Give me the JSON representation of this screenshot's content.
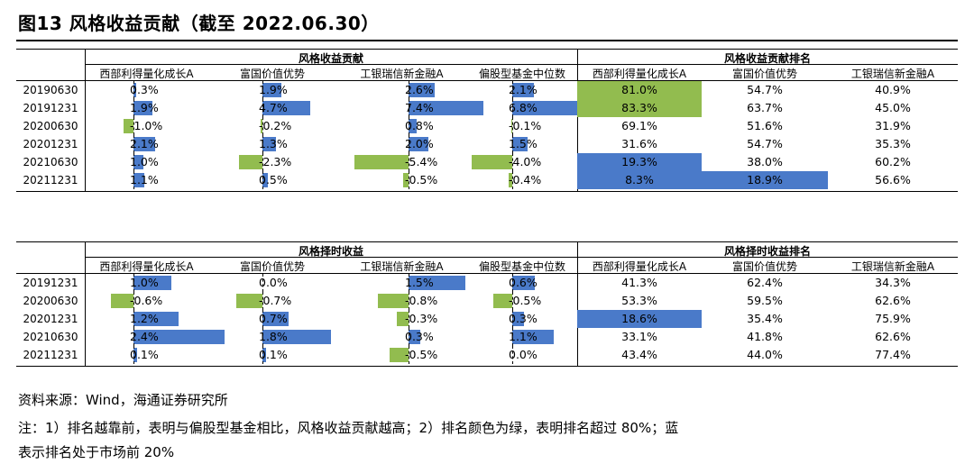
{
  "title": "图13 风格收益贡献（截至 2022.06.30）",
  "colors": {
    "pos": "#4a7ac9",
    "neg": "#92bc4f",
    "rank_green": "#92bc4f",
    "rank_blue": "#4a7ac9"
  },
  "table1": {
    "group_left": "风格收益贡献",
    "group_right": "风格收益贡献排名",
    "headers": [
      "西部利得量化成长A",
      "富国价值优势",
      "工银瑞信新金融A",
      "偏股型基金中位数"
    ],
    "rank_headers": [
      "西部利得量化成长A",
      "富国价值优势",
      "工银瑞信新金融A"
    ],
    "dates": [
      "20190630",
      "20191231",
      "20200630",
      "20201231",
      "20210630",
      "20211231"
    ],
    "values": [
      [
        0.3,
        1.9,
        2.6,
        2.1
      ],
      [
        1.9,
        4.7,
        7.4,
        6.8
      ],
      [
        -1.0,
        -0.2,
        0.8,
        -0.1
      ],
      [
        2.1,
        1.3,
        2.0,
        1.5
      ],
      [
        1.0,
        -2.3,
        -5.4,
        -4.0
      ],
      [
        1.1,
        0.5,
        -0.5,
        -0.4
      ]
    ],
    "labels": [
      [
        "0.3%",
        "1.9%",
        "2.6%",
        "2.1%"
      ],
      [
        "1.9%",
        "4.7%",
        "7.4%",
        "6.8%"
      ],
      [
        "-1.0%",
        "-0.2%",
        "0.8%",
        "-0.1%"
      ],
      [
        "2.1%",
        "1.3%",
        "2.0%",
        "1.5%"
      ],
      [
        "1.0%",
        "-2.3%",
        "-5.4%",
        "-4.0%"
      ],
      [
        "1.1%",
        "0.5%",
        "-0.5%",
        "-0.4%"
      ]
    ],
    "ranks": [
      [
        "81.0%",
        "54.7%",
        "40.9%"
      ],
      [
        "83.3%",
        "63.7%",
        "45.0%"
      ],
      [
        "69.1%",
        "51.6%",
        "31.9%"
      ],
      [
        "31.6%",
        "54.7%",
        "35.3%"
      ],
      [
        "19.3%",
        "38.0%",
        "60.2%"
      ],
      [
        "8.3%",
        "18.9%",
        "56.6%"
      ]
    ],
    "rank_values": [
      [
        81.0,
        54.7,
        40.9
      ],
      [
        83.3,
        63.7,
        45.0
      ],
      [
        69.1,
        51.6,
        31.9
      ],
      [
        31.6,
        54.7,
        35.3
      ],
      [
        19.3,
        38.0,
        60.2
      ],
      [
        8.3,
        18.9,
        56.6
      ]
    ]
  },
  "table2": {
    "group_left": "风格择时收益",
    "group_right": "风格择时收益排名",
    "headers": [
      "西部利得量化成长A",
      "富国价值优势",
      "工银瑞信新金融A",
      "偏股型基金中位数"
    ],
    "rank_headers": [
      "西部利得量化成长A",
      "富国价值优势",
      "工银瑞信新金融A"
    ],
    "dates": [
      "20191231",
      "20200630",
      "20201231",
      "20210630",
      "20211231"
    ],
    "values": [
      [
        1.0,
        0.0,
        1.5,
        0.6
      ],
      [
        -0.6,
        -0.7,
        -0.8,
        -0.5
      ],
      [
        1.2,
        0.7,
        -0.3,
        0.3
      ],
      [
        2.4,
        1.8,
        0.3,
        1.1
      ],
      [
        0.1,
        0.1,
        -0.5,
        0.0
      ]
    ],
    "labels": [
      [
        "1.0%",
        "0.0%",
        "1.5%",
        "0.6%"
      ],
      [
        "-0.6%",
        "-0.7%",
        "-0.8%",
        "-0.5%"
      ],
      [
        "1.2%",
        "0.7%",
        "-0.3%",
        "0.3%"
      ],
      [
        "2.4%",
        "1.8%",
        "0.3%",
        "1.1%"
      ],
      [
        "0.1%",
        "0.1%",
        "-0.5%",
        "0.0%"
      ]
    ],
    "ranks": [
      [
        "41.3%",
        "62.4%",
        "34.3%"
      ],
      [
        "53.3%",
        "59.5%",
        "62.6%"
      ],
      [
        "18.6%",
        "35.4%",
        "75.9%"
      ],
      [
        "33.1%",
        "41.8%",
        "62.6%"
      ],
      [
        "43.4%",
        "44.0%",
        "77.4%"
      ]
    ],
    "rank_values": [
      [
        41.3,
        62.4,
        34.3
      ],
      [
        53.3,
        59.5,
        62.6
      ],
      [
        18.6,
        35.4,
        75.9
      ],
      [
        33.1,
        41.8,
        62.6
      ],
      [
        43.4,
        44.0,
        77.4
      ]
    ]
  },
  "notes": {
    "source": "资料来源：Wind，海通证券研究所",
    "note_line1": "注：1）排名越靠前，表明与偏股型基金相比，风格收益贡献越高；2）排名颜色为绿，表明排名超过 80%；蓝",
    "note_line2": "表示排名处于市场前 20%"
  }
}
